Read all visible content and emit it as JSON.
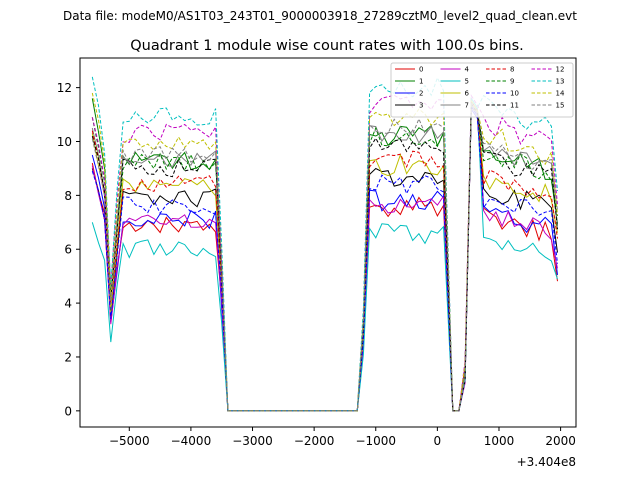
{
  "chart_data": {
    "type": "line",
    "suptitle": "Data file: modeM0/AS1T03_243T01_9000003918_27289cztM0_level2_quad_clean.evt",
    "title": "Quadrant 1 module wise count rates with 100.0s bins.",
    "xlabel": "",
    "ylabel": "",
    "offset_label": "+3.404e8",
    "xlim": [
      -5800,
      2250
    ],
    "ylim": [
      -0.6,
      13.1
    ],
    "xticks": [
      -5000,
      -4000,
      -3000,
      -2000,
      -1000,
      0,
      1000,
      2000
    ],
    "xtick_labels": [
      "−5000",
      "−4000",
      "−3000",
      "−2000",
      "−1000",
      "0",
      "1000",
      "2000"
    ],
    "yticks": [
      0,
      2,
      4,
      6,
      8,
      10,
      12
    ],
    "ytick_labels": [
      "0",
      "2",
      "4",
      "6",
      "8",
      "10",
      "12"
    ],
    "legend_position": "top-right",
    "segments": [
      {
        "x_start": -5600,
        "x_end": -3500,
        "shape": "dip_start",
        "dip": 0.4
      },
      {
        "x_start": -3400,
        "x_end": -1300,
        "shape": "zero"
      },
      {
        "x_start": -1200,
        "x_end": 150,
        "shape": "edges_drop",
        "edge_factor": 0.35
      },
      {
        "x_start": 250,
        "x_end": 350,
        "shape": "zero"
      },
      {
        "x_start": 450,
        "x_end": 550,
        "shape": "rise_spike"
      },
      {
        "x_start": 650,
        "x_end": 1950,
        "shape": "end_drop"
      }
    ],
    "series": [
      {
        "name": "0",
        "color": "#e00000",
        "dash": false,
        "level": 6.9,
        "initial": 9.2,
        "spike": 11.3
      },
      {
        "name": "1",
        "color": "#008000",
        "dash": false,
        "level": 9.3,
        "initial": 11.6,
        "spike": 11.5
      },
      {
        "name": "2",
        "color": "#0000ff",
        "dash": false,
        "level": 7.1,
        "initial": 9.5,
        "spike": 11.2
      },
      {
        "name": "3",
        "color": "#000000",
        "dash": false,
        "level": 7.9,
        "initial": 9.0,
        "spike": 11.3
      },
      {
        "name": "4",
        "color": "#c000c0",
        "dash": false,
        "level": 7.0,
        "initial": 9.1,
        "spike": 11.4
      },
      {
        "name": "5",
        "color": "#00bfbf",
        "dash": false,
        "level": 6.0,
        "initial": 7.0,
        "spike": 11.6
      },
      {
        "name": "6",
        "color": "#bfbf00",
        "dash": false,
        "level": 8.3,
        "initial": 10.3,
        "spike": 11.4
      },
      {
        "name": "7",
        "color": "#808080",
        "dash": false,
        "level": 9.4,
        "initial": 10.5,
        "spike": 11.3
      },
      {
        "name": "8",
        "color": "#e00000",
        "dash": true,
        "level": 8.4,
        "initial": 10.4,
        "spike": 11.5
      },
      {
        "name": "9",
        "color": "#008000",
        "dash": true,
        "level": 9.2,
        "initial": 10.9,
        "spike": 11.5
      },
      {
        "name": "10",
        "color": "#0000ff",
        "dash": true,
        "level": 7.6,
        "initial": 8.9,
        "spike": 11.3
      },
      {
        "name": "11",
        "color": "#000000",
        "dash": true,
        "level": 9.0,
        "initial": 10.2,
        "spike": 11.4
      },
      {
        "name": "12",
        "color": "#c000c0",
        "dash": true,
        "level": 10.3,
        "initial": 10.9,
        "spike": 11.7
      },
      {
        "name": "13",
        "color": "#00bfbf",
        "dash": true,
        "level": 10.9,
        "initial": 12.4,
        "spike": 11.6
      },
      {
        "name": "14",
        "color": "#bfbf00",
        "dash": true,
        "level": 9.9,
        "initial": 11.8,
        "spike": 11.5
      },
      {
        "name": "15",
        "color": "#808080",
        "dash": true,
        "level": 9.5,
        "initial": 10.1,
        "spike": 11.4
      }
    ]
  }
}
